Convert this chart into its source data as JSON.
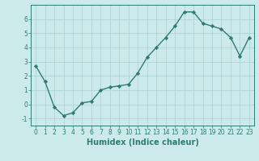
{
  "x": [
    0,
    1,
    2,
    3,
    4,
    5,
    6,
    7,
    8,
    9,
    10,
    11,
    12,
    13,
    14,
    15,
    16,
    17,
    18,
    19,
    20,
    21,
    22,
    23
  ],
  "y": [
    2.7,
    1.6,
    -0.2,
    -0.8,
    -0.6,
    0.1,
    0.2,
    1.0,
    1.2,
    1.3,
    1.4,
    2.2,
    3.3,
    4.0,
    4.7,
    5.5,
    6.5,
    6.5,
    5.7,
    5.5,
    5.3,
    4.7,
    3.4,
    4.7
  ],
  "line_color": "#2e7d6e",
  "marker": "D",
  "marker_size": 2.2,
  "linewidth": 1.0,
  "xlabel": "Humidex (Indice chaleur)",
  "xlim": [
    -0.5,
    23.5
  ],
  "ylim": [
    -1.5,
    7.0
  ],
  "yticks": [
    -1,
    0,
    1,
    2,
    3,
    4,
    5,
    6
  ],
  "xticks": [
    0,
    1,
    2,
    3,
    4,
    5,
    6,
    7,
    8,
    9,
    10,
    11,
    12,
    13,
    14,
    15,
    16,
    17,
    18,
    19,
    20,
    21,
    22,
    23
  ],
  "bg_color": "#cdeaea",
  "grid_color": "#b0d4d4",
  "tick_color": "#2e7d6e",
  "label_color": "#2e7d6e",
  "xlabel_fontsize": 7,
  "tick_fontsize": 5.5
}
